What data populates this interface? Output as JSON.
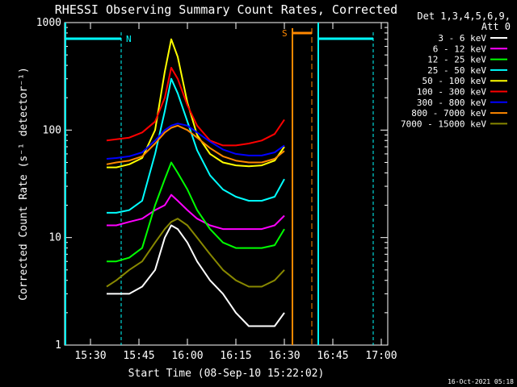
{
  "chart_data": {
    "type": "line",
    "title": "RHESSI Observing Summary Count Rates, Corrected",
    "xlabel": "Start Time (08-Sep-10 15:22:02)",
    "ylabel": "Corrected Count Rate (s⁻¹ detector⁻¹)",
    "ylog": true,
    "xlim_min": [
      0,
      100
    ],
    "ylim": [
      1,
      1000
    ],
    "xticks": [
      {
        "label": "15:30",
        "value": 8
      },
      {
        "label": "15:45",
        "value": 23
      },
      {
        "label": "16:00",
        "value": 38
      },
      {
        "label": "16:15",
        "value": 53
      },
      {
        "label": "16:30",
        "value": 68
      },
      {
        "label": "16:45",
        "value": 83
      },
      {
        "label": "17:00",
        "value": 98
      }
    ],
    "yticks": [
      {
        "label": "1",
        "value": 1
      },
      {
        "label": "10",
        "value": 10
      },
      {
        "label": "100",
        "value": 100
      },
      {
        "label": "1000",
        "value": 1000
      }
    ],
    "legend_header": [
      "Det 1,3,4,5,6,9,",
      "Att 0"
    ],
    "legend_position": "right",
    "series": [
      {
        "name": "3 - 6 keV",
        "color": "#ffffff",
        "x": [
          13,
          16,
          20,
          24,
          28,
          31,
          33,
          35,
          38,
          41,
          45,
          49,
          53,
          57,
          61,
          65,
          68
        ],
        "y": [
          3,
          3,
          3,
          3.5,
          5,
          10,
          13,
          12,
          9,
          6,
          4,
          3,
          2,
          1.5,
          1.5,
          1.5,
          2
        ]
      },
      {
        "name": "6 - 12 keV",
        "color": "#ff00ff",
        "x": [
          13,
          16,
          20,
          24,
          28,
          31,
          33,
          35,
          38,
          41,
          45,
          49,
          53,
          57,
          61,
          65,
          68
        ],
        "y": [
          13,
          13,
          14,
          15,
          18,
          20,
          25,
          22,
          18,
          15,
          13,
          12,
          12,
          12,
          12,
          13,
          16
        ]
      },
      {
        "name": "12 - 25 keV",
        "color": "#00ff00",
        "x": [
          13,
          16,
          20,
          24,
          28,
          31,
          33,
          35,
          38,
          41,
          45,
          49,
          53,
          57,
          61,
          65,
          68
        ],
        "y": [
          6,
          6,
          6.5,
          8,
          20,
          35,
          50,
          40,
          28,
          18,
          12,
          9,
          8,
          8,
          8,
          8.5,
          12
        ]
      },
      {
        "name": "25 - 50 keV",
        "color": "#00ffff",
        "x": [
          13,
          16,
          20,
          24,
          28,
          31,
          33,
          35,
          38,
          41,
          45,
          49,
          53,
          57,
          61,
          65,
          68
        ],
        "y": [
          17,
          17,
          18,
          22,
          60,
          150,
          300,
          220,
          120,
          65,
          38,
          28,
          24,
          22,
          22,
          24,
          35
        ]
      },
      {
        "name": "50 - 100 keV",
        "color": "#ffff00",
        "x": [
          13,
          16,
          20,
          24,
          28,
          31,
          33,
          35,
          38,
          41,
          45,
          49,
          53,
          57,
          61,
          65,
          68
        ],
        "y": [
          45,
          45,
          48,
          55,
          100,
          350,
          700,
          480,
          180,
          90,
          60,
          50,
          47,
          46,
          47,
          52,
          70
        ]
      },
      {
        "name": "100 - 300 keV",
        "color": "#ff0000",
        "x": [
          13,
          16,
          20,
          24,
          28,
          31,
          33,
          35,
          38,
          41,
          45,
          49,
          53,
          57,
          61,
          65,
          68
        ],
        "y": [
          80,
          82,
          85,
          95,
          120,
          200,
          380,
          300,
          170,
          110,
          80,
          72,
          72,
          75,
          80,
          92,
          125
        ]
      },
      {
        "name": "300 - 800 keV",
        "color": "#0000ff",
        "x": [
          13,
          16,
          20,
          24,
          28,
          31,
          33,
          35,
          38,
          41,
          45,
          49,
          53,
          57,
          61,
          65,
          68
        ],
        "y": [
          54,
          55,
          57,
          62,
          80,
          100,
          110,
          115,
          110,
          95,
          78,
          66,
          60,
          58,
          58,
          62,
          72
        ]
      },
      {
        "name": "800 - 7000 keV",
        "color": "#ff8800",
        "x": [
          13,
          16,
          20,
          24,
          28,
          31,
          33,
          35,
          38,
          41,
          45,
          49,
          53,
          57,
          61,
          65,
          68
        ],
        "y": [
          48,
          50,
          52,
          57,
          75,
          95,
          105,
          110,
          100,
          85,
          68,
          57,
          52,
          50,
          50,
          54,
          64
        ]
      },
      {
        "name": "7000 - 15000 keV",
        "color": "#888800",
        "x": [
          13,
          16,
          20,
          24,
          28,
          31,
          33,
          35,
          38,
          41,
          45,
          49,
          53,
          57,
          61,
          65,
          68
        ],
        "y": [
          3.5,
          4,
          5,
          6,
          9,
          12,
          14,
          15,
          13,
          10,
          7,
          5,
          4,
          3.5,
          3.5,
          4,
          5
        ]
      }
    ],
    "markers": [
      {
        "label": "N",
        "color": "#00ffff"
      },
      {
        "label": "S",
        "color": "#ff8800"
      }
    ]
  },
  "footer": {
    "timestamp": "16-Oct-2021 05:18"
  }
}
